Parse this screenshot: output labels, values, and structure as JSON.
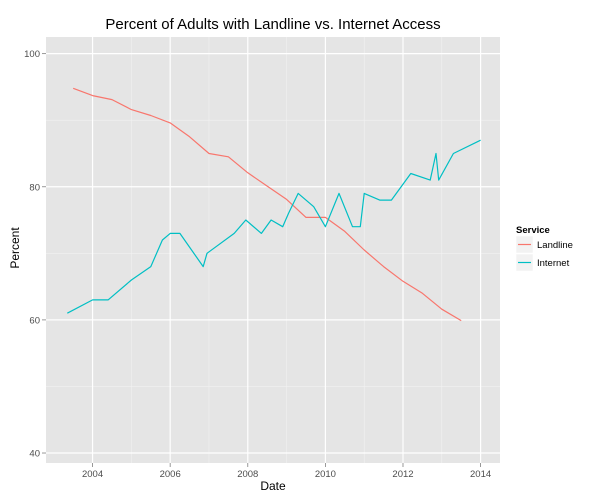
{
  "chart_data": {
    "type": "line",
    "title": "Percent of Adults with Landline vs. Internet Access",
    "xlabel": "Date",
    "ylabel": "Percent",
    "xlim": [
      2002.8,
      2014.5
    ],
    "ylim": [
      38.5,
      102.5
    ],
    "x_ticks": [
      2004,
      2006,
      2008,
      2010,
      2012,
      2014
    ],
    "y_ticks": [
      40,
      60,
      80,
      100
    ],
    "grid": true,
    "legend": {
      "title": "Service",
      "position": "right"
    },
    "series": [
      {
        "name": "Landline",
        "color": "#F8766D",
        "x": [
          2003.5,
          2004.0,
          2004.5,
          2005.0,
          2005.5,
          2006.0,
          2006.5,
          2007.0,
          2007.5,
          2008.0,
          2008.5,
          2009.0,
          2009.5,
          2010.0,
          2010.5,
          2011.0,
          2011.5,
          2012.0,
          2012.5,
          2013.0,
          2013.5
        ],
        "y": [
          94.8,
          93.7,
          93.1,
          91.6,
          90.7,
          89.6,
          87.5,
          85.0,
          84.5,
          82.1,
          80.1,
          78.1,
          75.4,
          75.4,
          73.3,
          70.5,
          68.0,
          65.8,
          64.0,
          61.6,
          59.9
        ]
      },
      {
        "name": "Internet",
        "color": "#00BFC4",
        "x": [
          2003.35,
          2004.0,
          2004.4,
          2005.0,
          2005.5,
          2005.8,
          2006.0,
          2006.25,
          2006.85,
          2006.95,
          2007.65,
          2007.95,
          2008.35,
          2008.6,
          2008.9,
          2009.05,
          2009.3,
          2009.7,
          2010.0,
          2010.35,
          2010.7,
          2010.9,
          2011.0,
          2011.4,
          2011.7,
          2012.2,
          2012.7,
          2012.85,
          2012.92,
          2013.3,
          2014.0
        ],
        "y": [
          61,
          63,
          63,
          66,
          68,
          72,
          73,
          73,
          68,
          70,
          73,
          75,
          73,
          75,
          74,
          76,
          79,
          77,
          74,
          79,
          74,
          74,
          79,
          78,
          78,
          82,
          81,
          85,
          81,
          85,
          87
        ]
      }
    ]
  }
}
